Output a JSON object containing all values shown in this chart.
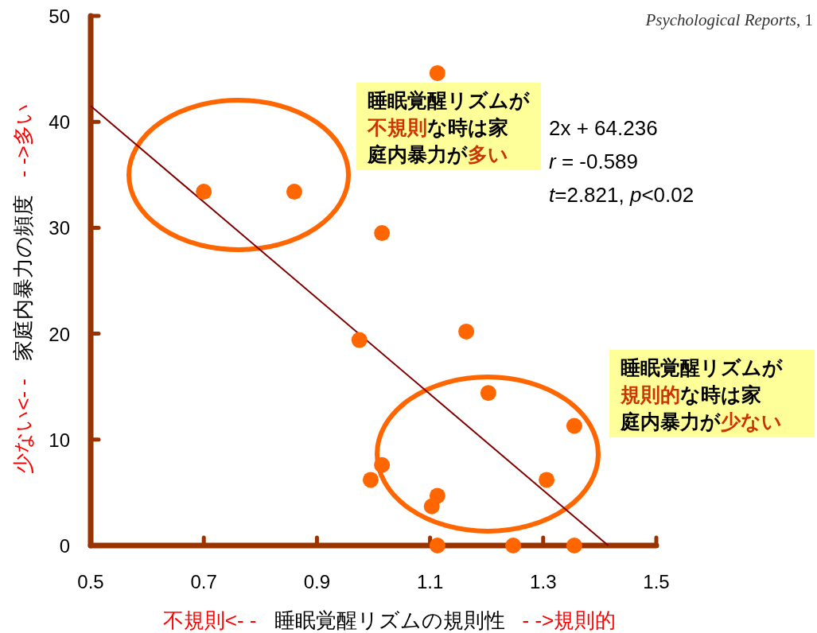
{
  "chart_data": {
    "type": "scatter",
    "xlabel": "睡眠覚醒リズムの規則性",
    "ylabel": "家庭内暴力の頻度",
    "xlim": [
      0.5,
      1.5
    ],
    "xticks": [
      0.5,
      0.7,
      0.9,
      1.1,
      1.3,
      1.5
    ],
    "ylim": [
      0,
      50
    ],
    "yticks": [
      0,
      10,
      20,
      30,
      40,
      50
    ],
    "grid": false,
    "series": [
      {
        "type": "scatter",
        "marker": "circle",
        "color": "#ff6600",
        "x": [
          0.7,
          0.86,
          1.113,
          1.015,
          0.975,
          1.164,
          1.203,
          1.355,
          1.015,
          0.995,
          1.113,
          1.103,
          1.306,
          1.113,
          1.247,
          1.355
        ],
        "values": [
          33.4,
          33.4,
          44.6,
          29.5,
          19.4,
          20.2,
          14.4,
          11.3,
          7.6,
          6.2,
          4.7,
          3.7,
          6.2,
          0,
          0,
          0
        ]
      },
      {
        "type": "line",
        "color": "#800000",
        "line_style": "solid",
        "x": [
          0.5,
          1.415
        ],
        "values": [
          41.5,
          0
        ]
      }
    ],
    "annotations": [
      "*Psychological Reports*, 1",
      "2x + 64.236",
      "*r* = -0.589",
      "*t*=2.821, *p*<0.02",
      "睡眠覚醒リズムが",
      "不規則",
      "な時は家",
      "庭内暴力が",
      "多い",
      "睡眠覚醒リズムが",
      "規則的",
      "な時は家",
      "庭内暴力が",
      "少ない",
      "不規則<- -",
      "- ->規則的",
      "少ない<- -",
      "- ->多い"
    ]
  }
}
